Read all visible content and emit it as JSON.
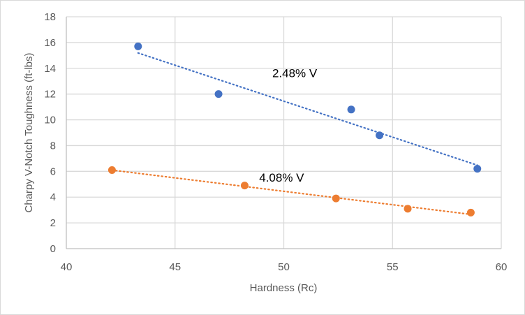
{
  "chart_data": {
    "type": "scatter",
    "title": "",
    "xlabel": "Hardness (Rc)",
    "ylabel": "Charpy V-Notch Toughness (ft-lbs)",
    "xlim": [
      40,
      60
    ],
    "ylim": [
      0,
      18
    ],
    "xticks": [
      40,
      45,
      50,
      55,
      60
    ],
    "yticks": [
      0,
      2,
      4,
      6,
      8,
      10,
      12,
      14,
      16,
      18
    ],
    "grid": true,
    "legend": "none",
    "series": [
      {
        "name": "2.48% V",
        "color": "#4472c4",
        "trendline": "linear",
        "label_at": [
          50.5,
          13.3
        ],
        "points": [
          {
            "x": 43.3,
            "y": 15.7
          },
          {
            "x": 47.0,
            "y": 12.0
          },
          {
            "x": 53.1,
            "y": 10.8
          },
          {
            "x": 54.4,
            "y": 8.8
          },
          {
            "x": 58.9,
            "y": 6.2
          }
        ]
      },
      {
        "name": "4.08% V",
        "color": "#ed7d31",
        "trendline": "linear",
        "label_at": [
          49.9,
          5.2
        ],
        "points": [
          {
            "x": 42.1,
            "y": 6.1
          },
          {
            "x": 48.2,
            "y": 4.9
          },
          {
            "x": 52.4,
            "y": 3.9
          },
          {
            "x": 55.7,
            "y": 3.1
          },
          {
            "x": 58.6,
            "y": 2.8
          }
        ]
      }
    ]
  }
}
